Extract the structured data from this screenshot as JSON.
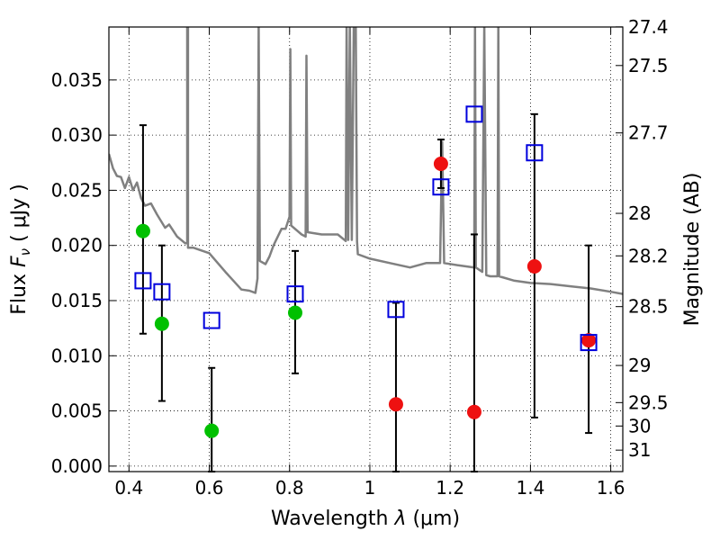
{
  "chart_data": {
    "type": "scatter",
    "xlabel_prefix": "Wavelength  ",
    "xlabel_symbol": "λ",
    "xlabel_unit": " (μm)",
    "ylabel_prefix": "Flux  ",
    "ylabel_symbol": "F",
    "ylabel_subscript": "ν",
    "ylabel_unit": "  ( μJy )",
    "y2label": "Magnitude (AB)",
    "xlim": [
      0.35,
      1.63
    ],
    "ylim": [
      -0.0005,
      0.0398
    ],
    "x_ticks": [
      0.4,
      0.6,
      0.8,
      1.0,
      1.2,
      1.4,
      1.6
    ],
    "x_tick_labels": [
      "0.4",
      "0.6",
      "0.8",
      "1",
      "1.2",
      "1.4",
      "1.6"
    ],
    "y_ticks": [
      0,
      0.005,
      0.01,
      0.015,
      0.02,
      0.025,
      0.03,
      0.035
    ],
    "y_tick_labels": [
      "0.000",
      "0.005",
      "0.010",
      "0.015",
      "0.020",
      "0.025",
      "0.030",
      "0.035"
    ],
    "mag_ticks": [
      {
        "mag": 27.4,
        "label": "27.4"
      },
      {
        "mag": 27.5,
        "label": "27.5"
      },
      {
        "mag": 27.7,
        "label": "27.7"
      },
      {
        "mag": 28.0,
        "label": "28"
      },
      {
        "mag": 28.2,
        "label": "28.2"
      },
      {
        "mag": 28.5,
        "label": "28.5"
      },
      {
        "mag": 29.0,
        "label": "29"
      },
      {
        "mag": 29.5,
        "label": "29.5"
      },
      {
        "mag": 30.0,
        "label": "30"
      },
      {
        "mag": 31.0,
        "label": "31"
      }
    ],
    "grid": true,
    "colors": {
      "model": "#808080",
      "green_points": "#00c000",
      "red_points": "#ee1111",
      "model_boxes": "#0000dd",
      "errorbars": "#000000"
    },
    "series": [
      {
        "name": "Observed (green)",
        "marker": "circle",
        "points": [
          {
            "x": 0.435,
            "y": 0.0213,
            "yerr_low": 0.012,
            "yerr_high": 0.0309
          },
          {
            "x": 0.482,
            "y": 0.0129,
            "yerr_low": 0.0059,
            "yerr_high": 0.02
          },
          {
            "x": 0.606,
            "y": 0.0032,
            "yerr_low": -0.0005,
            "yerr_high": 0.0089
          },
          {
            "x": 0.814,
            "y": 0.0139,
            "yerr_low": 0.0084,
            "yerr_high": 0.0195
          }
        ]
      },
      {
        "name": "Observed (red)",
        "marker": "circle",
        "points": [
          {
            "x": 1.065,
            "y": 0.0056,
            "yerr_low": -0.0005,
            "yerr_high": 0.0148
          },
          {
            "x": 1.177,
            "y": 0.0274,
            "yerr_low": 0.0252,
            "yerr_high": 0.0296
          },
          {
            "x": 1.26,
            "y": 0.0049,
            "yerr_low": -0.0005,
            "yerr_high": 0.021
          },
          {
            "x": 1.41,
            "y": 0.0181,
            "yerr_low": 0.0044,
            "yerr_high": 0.0319
          },
          {
            "x": 1.545,
            "y": 0.0114,
            "yerr_low": 0.003,
            "yerr_high": 0.02
          }
        ]
      },
      {
        "name": "Model photometry",
        "marker": "open-square",
        "points": [
          {
            "x": 0.435,
            "y": 0.0168
          },
          {
            "x": 0.482,
            "y": 0.0158
          },
          {
            "x": 0.606,
            "y": 0.0132
          },
          {
            "x": 0.814,
            "y": 0.0156
          },
          {
            "x": 1.065,
            "y": 0.0142
          },
          {
            "x": 1.177,
            "y": 0.0253
          },
          {
            "x": 1.26,
            "y": 0.0319
          },
          {
            "x": 1.41,
            "y": 0.0284
          },
          {
            "x": 1.545,
            "y": 0.0112
          }
        ]
      }
    ],
    "model_spectrum": [
      [
        0.35,
        0.0283
      ],
      [
        0.36,
        0.027
      ],
      [
        0.37,
        0.0263
      ],
      [
        0.38,
        0.0262
      ],
      [
        0.39,
        0.0252
      ],
      [
        0.4,
        0.0262
      ],
      [
        0.41,
        0.025
      ],
      [
        0.42,
        0.0257
      ],
      [
        0.43,
        0.0243
      ],
      [
        0.44,
        0.0236
      ],
      [
        0.455,
        0.0238
      ],
      [
        0.47,
        0.0228
      ],
      [
        0.49,
        0.0216
      ],
      [
        0.5,
        0.0219
      ],
      [
        0.52,
        0.0208
      ],
      [
        0.54,
        0.0202
      ],
      [
        0.545,
        0.0202
      ],
      [
        0.545,
        0.04
      ],
      [
        0.547,
        0.04
      ],
      [
        0.547,
        0.0198
      ],
      [
        0.56,
        0.0198
      ],
      [
        0.6,
        0.0193
      ],
      [
        0.64,
        0.0176
      ],
      [
        0.68,
        0.016
      ],
      [
        0.7,
        0.0159
      ],
      [
        0.715,
        0.0157
      ],
      [
        0.72,
        0.017
      ],
      [
        0.723,
        0.04
      ],
      [
        0.726,
        0.0186
      ],
      [
        0.74,
        0.0183
      ],
      [
        0.75,
        0.019
      ],
      [
        0.76,
        0.02
      ],
      [
        0.78,
        0.0215
      ],
      [
        0.79,
        0.0215
      ],
      [
        0.8,
        0.0226
      ],
      [
        0.802,
        0.0378
      ],
      [
        0.804,
        0.0218
      ],
      [
        0.83,
        0.021
      ],
      [
        0.84,
        0.0208
      ],
      [
        0.842,
        0.0372
      ],
      [
        0.845,
        0.0212
      ],
      [
        0.88,
        0.021
      ],
      [
        0.92,
        0.021
      ],
      [
        0.94,
        0.0204
      ],
      [
        0.942,
        0.04
      ],
      [
        0.946,
        0.0205
      ],
      [
        0.95,
        0.04
      ],
      [
        0.955,
        0.0205
      ],
      [
        0.96,
        0.04
      ],
      [
        0.965,
        0.04
      ],
      [
        0.968,
        0.0204
      ],
      [
        0.97,
        0.0192
      ],
      [
        1.0,
        0.0188
      ],
      [
        1.05,
        0.0184
      ],
      [
        1.1,
        0.018
      ],
      [
        1.14,
        0.0184
      ],
      [
        1.175,
        0.0184
      ],
      [
        1.18,
        0.0294
      ],
      [
        1.185,
        0.0184
      ],
      [
        1.22,
        0.0182
      ],
      [
        1.26,
        0.018
      ],
      [
        1.262,
        0.04
      ],
      [
        1.264,
        0.018
      ],
      [
        1.28,
        0.0176
      ],
      [
        1.285,
        0.04
      ],
      [
        1.29,
        0.0173
      ],
      [
        1.3,
        0.0172
      ],
      [
        1.318,
        0.0172
      ],
      [
        1.32,
        0.04
      ],
      [
        1.322,
        0.0172
      ],
      [
        1.36,
        0.0168
      ],
      [
        1.4,
        0.0166
      ],
      [
        1.45,
        0.0165
      ],
      [
        1.5,
        0.0163
      ],
      [
        1.55,
        0.0161
      ],
      [
        1.6,
        0.0158
      ],
      [
        1.63,
        0.0156
      ]
    ]
  }
}
